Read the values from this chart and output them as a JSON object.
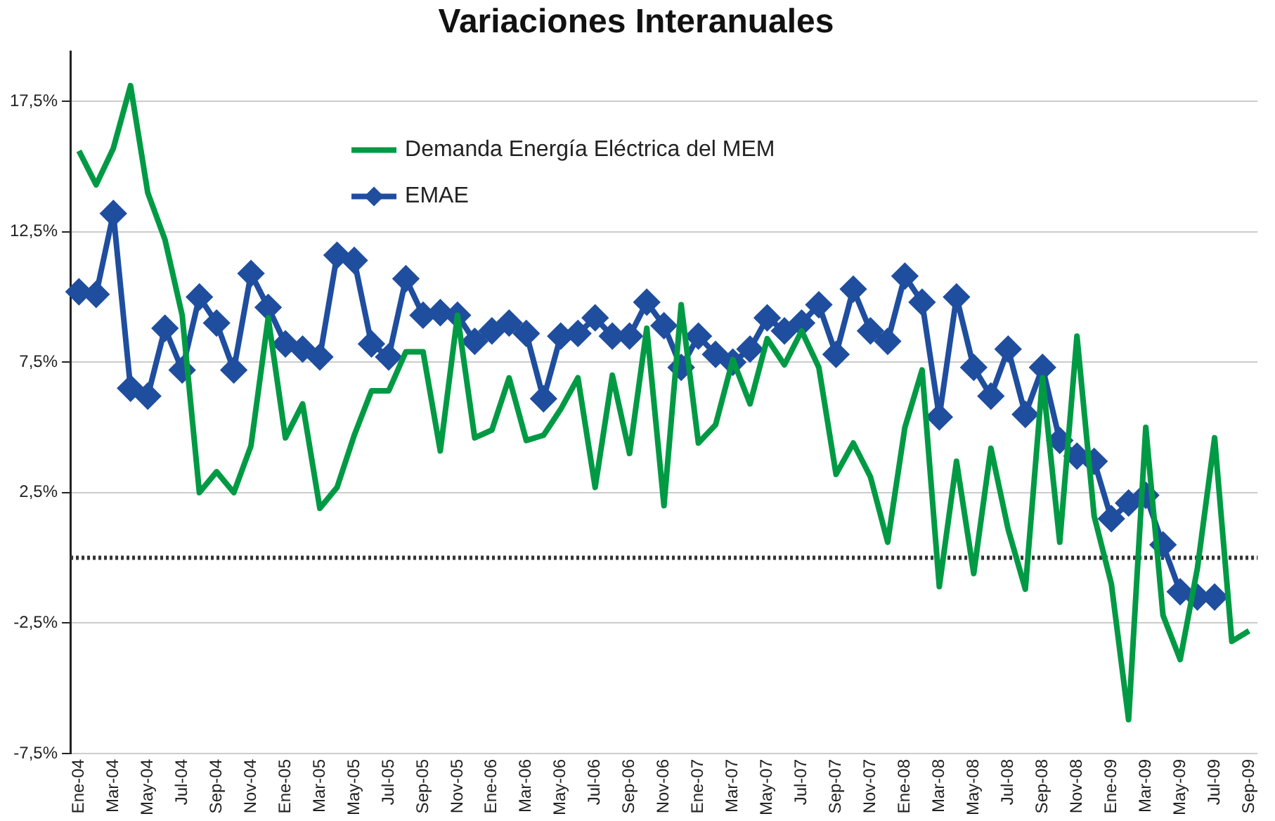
{
  "chart_data": {
    "type": "line",
    "title": "Variaciones Interanuales",
    "categories": [
      "Ene-04",
      null,
      "Mar-04",
      null,
      "May-04",
      null,
      "Jul-04",
      null,
      "Sep-04",
      null,
      "Nov-04",
      null,
      "Ene-05",
      null,
      "Mar-05",
      null,
      "May-05",
      null,
      "Jul-05",
      null,
      "Sep-05",
      null,
      "Nov-05",
      null,
      "Ene-06",
      null,
      "Mar-06",
      null,
      "May-06",
      null,
      "Jul-06",
      null,
      "Sep-06",
      null,
      "Nov-06",
      null,
      "Ene-07",
      null,
      "Mar-07",
      null,
      "May-07",
      null,
      "Jul-07",
      null,
      "Sep-07",
      null,
      "Nov-07",
      null,
      "Ene-08",
      null,
      "Mar-08",
      null,
      "May-08",
      null,
      "Jul-08",
      null,
      "Sep-08",
      null,
      "Nov-08",
      null,
      "Ene-09",
      null,
      "Mar-09",
      null,
      "May-09",
      null,
      "Jul-09",
      null,
      "Sep-09"
    ],
    "series": [
      {
        "name": "Demanda Energía Eléctrica del MEM",
        "color": "#009a44",
        "marker": "none",
        "values": [
          15.6,
          14.3,
          15.7,
          18.1,
          14.0,
          12.2,
          9.3,
          2.5,
          3.3,
          2.5,
          4.3,
          9.2,
          4.6,
          5.9,
          1.9,
          2.7,
          4.7,
          6.4,
          6.4,
          7.9,
          7.9,
          4.1,
          9.3,
          4.6,
          4.9,
          6.9,
          4.5,
          4.7,
          5.7,
          6.9,
          2.7,
          7.0,
          4.0,
          8.8,
          2.0,
          9.7,
          4.4,
          5.1,
          7.6,
          5.9,
          8.4,
          7.4,
          8.7,
          7.3,
          3.2,
          4.4,
          3.1,
          0.6,
          5.0,
          7.2,
          -1.1,
          3.7,
          -0.6,
          4.2,
          1.1,
          -1.2,
          6.9,
          0.6,
          8.5,
          1.6,
          -1.0,
          -6.2,
          5.0,
          -2.2,
          -3.9,
          -0.4,
          4.6,
          -3.2,
          -2.8
        ]
      },
      {
        "name": "EMAE",
        "color": "#1f4e9f",
        "marker": "diamond",
        "values": [
          10.2,
          10.1,
          13.2,
          6.5,
          6.2,
          8.8,
          7.2,
          10.0,
          9.0,
          7.2,
          10.9,
          9.6,
          8.2,
          8.0,
          7.7,
          11.6,
          11.4,
          8.2,
          7.7,
          10.7,
          9.3,
          9.4,
          9.3,
          8.3,
          8.7,
          9.0,
          8.6,
          6.1,
          8.5,
          8.6,
          9.2,
          8.5,
          8.5,
          9.8,
          8.9,
          7.3,
          8.5,
          7.8,
          7.5,
          8.0,
          9.2,
          8.7,
          9.0,
          9.7,
          7.8,
          10.3,
          8.7,
          8.3,
          10.8,
          9.8,
          5.4,
          10.0,
          7.3,
          6.2,
          8.0,
          5.5,
          7.3,
          4.5,
          3.9,
          3.7,
          1.5,
          2.1,
          2.4,
          0.5,
          -1.3,
          -1.5,
          -1.5,
          null,
          null
        ]
      }
    ],
    "ylim": [
      -7.5,
      19.4
    ],
    "yticks": [
      {
        "value": -7.5,
        "label": "-7,5%"
      },
      {
        "value": -2.5,
        "label": "-2,5%"
      },
      {
        "value": 2.5,
        "label": "2,5%"
      },
      {
        "value": 7.5,
        "label": "7,5%"
      },
      {
        "value": 12.5,
        "label": "12,5%"
      },
      {
        "value": 17.5,
        "label": "17,5%"
      }
    ],
    "grid": "y",
    "legend": "top left",
    "ref_lines": [
      {
        "axis": "y",
        "value": 0,
        "color": "#333333",
        "line_style": "dotted"
      }
    ]
  }
}
